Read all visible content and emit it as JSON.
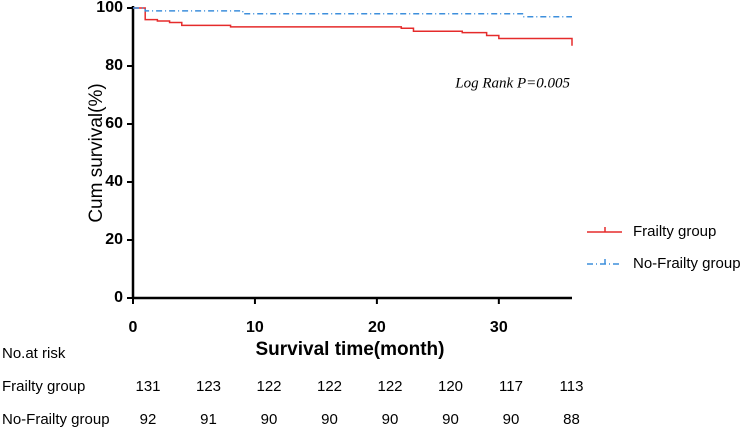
{
  "chart_data": {
    "type": "step",
    "y_label": "Cum survival(%)",
    "x_label": "Survival time(month)",
    "annotation": "Log Rank P=0.005",
    "xlim": [
      0,
      36
    ],
    "ylim": [
      0,
      100
    ],
    "xticks": [
      0,
      10,
      20,
      30
    ],
    "yticks": [
      0,
      20,
      40,
      60,
      80,
      100
    ],
    "series": [
      {
        "name": "Frailty group",
        "color": "#e52b2b",
        "dash": "solid",
        "x": [
          0,
          1,
          2,
          3,
          4,
          8,
          22,
          23,
          27,
          29,
          30,
          36
        ],
        "values": [
          100,
          96,
          95.5,
          95,
          94,
          93.5,
          93,
          92,
          91.5,
          90.5,
          89.5,
          87
        ]
      },
      {
        "name": "No-Frailty group",
        "color": "#3d8fdc",
        "dash": "dashdot",
        "x": [
          0,
          1,
          9,
          32
        ],
        "values": [
          100,
          99,
          98,
          97
        ]
      }
    ],
    "risk_table": {
      "title": "No.at risk",
      "rows": [
        {
          "name": "Frailty group",
          "values": [
            131,
            123,
            122,
            122,
            122,
            120,
            117,
            113
          ]
        },
        {
          "name": "No-Frailty group",
          "values": [
            92,
            91,
            90,
            90,
            90,
            90,
            90,
            88
          ]
        }
      ]
    }
  }
}
